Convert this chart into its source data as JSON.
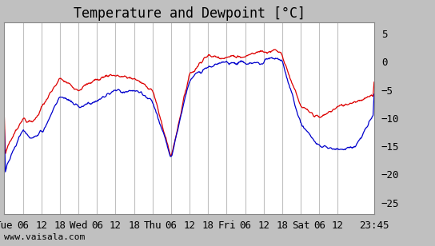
{
  "title": "Temperature and Dewpoint [°C]",
  "bg_color": "#c0c0c0",
  "plot_bg_color": "#ffffff",
  "grid_color": "#c0c0c0",
  "temp_color": "#dd0000",
  "dewp_color": "#0000cc",
  "ylim": [
    -27,
    7
  ],
  "yticks": [
    5,
    0,
    -5,
    -10,
    -15,
    -20,
    -25
  ],
  "x_labels": [
    "Tue",
    "06",
    "12",
    "18",
    "Wed",
    "06",
    "12",
    "18",
    "Thu",
    "06",
    "12",
    "18",
    "Fri",
    "06",
    "12",
    "18",
    "Sat",
    "06",
    "12",
    "23:45"
  ],
  "watermark": "www.vaisala.com",
  "title_fontsize": 12,
  "label_fontsize": 9,
  "watermark_fontsize": 8
}
